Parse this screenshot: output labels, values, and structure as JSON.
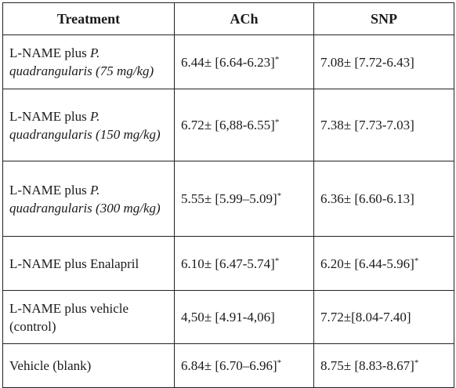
{
  "table": {
    "headers": [
      "Treatment",
      "ACh",
      "SNP"
    ],
    "rows": [
      {
        "treatment_plain": "L-NAME plus ",
        "treatment_italic": "P. quadrangularis (75 mg/kg)",
        "ach": "6.44± [6.64-6.23]",
        "ach_star": "*",
        "snp": "7.08± [7.72-6.43]",
        "snp_star": ""
      },
      {
        "treatment_plain": "L-NAME plus ",
        "treatment_italic": "P. quadrangularis (150 mg/kg)",
        "ach": "6.72± [6,88-6.55]",
        "ach_star": "*",
        "snp": "7.38± [7.73-7.03]",
        "snp_star": ""
      },
      {
        "treatment_plain": "L-NAME plus ",
        "treatment_italic": "P. quadrangularis (300 mg/kg)",
        "ach": "5.55± [5.99–5.09]",
        "ach_star": "*",
        "snp": "6.36± [6.60-6.13]",
        "snp_star": ""
      },
      {
        "treatment_plain": "L-NAME plus Enalapril",
        "treatment_italic": "",
        "ach": "6.10± [6.47-5.74]",
        "ach_star": "*",
        "snp": "6.20± [6.44-5.96]",
        "snp_star": "*"
      },
      {
        "treatment_plain": "L-NAME plus vehicle (control)",
        "treatment_italic": "",
        "ach": "4,50± [4.91-4,06]",
        "ach_star": "",
        "snp": "7.72±[8.04-7.40]",
        "snp_star": ""
      },
      {
        "treatment_plain": "Vehicle (blank)",
        "treatment_italic": "",
        "ach": "6.84± [6.70–6.96]",
        "ach_star": "*",
        "snp": "8.75± [8.83-8.67]",
        "snp_star": "*"
      }
    ]
  }
}
